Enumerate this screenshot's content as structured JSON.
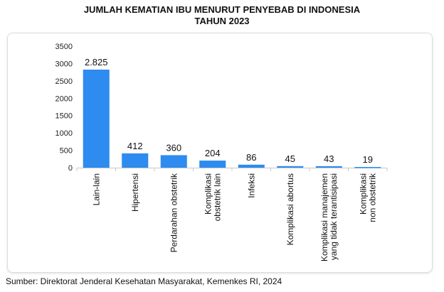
{
  "title_line1": "JUMLAH KEMATIAN IBU MENURUT PENYEBAB DI INDONESIA",
  "title_line2": "TAHUN 2023",
  "source": "Sumber: Direktorat Jenderal Kesehatan Masyarakat, Kemenkes RI, 2024",
  "chart_data": {
    "type": "bar",
    "title": "JUMLAH KEMATIAN IBU MENURUT PENYEBAB DI INDONESIA TAHUN 2023",
    "categories": [
      [
        "Lain-lain"
      ],
      [
        "Hipertensi"
      ],
      [
        "Perdarahan obstetrik"
      ],
      [
        "Komplikasi",
        "obstetrik lain"
      ],
      [
        "Infeksi"
      ],
      [
        "Komplikasi abortus"
      ],
      [
        "Komplikasi manajemen",
        "yang tidak terantisipasi"
      ],
      [
        "Komplikasi",
        "non obstetrik"
      ]
    ],
    "values": [
      2825,
      412,
      360,
      204,
      86,
      45,
      43,
      19
    ],
    "value_labels": [
      "2.825",
      "412",
      "360",
      "204",
      "86",
      "45",
      "43",
      "19"
    ],
    "yticks": [
      0,
      500,
      1000,
      1500,
      2000,
      2500,
      3000,
      3500
    ],
    "ylim": [
      0,
      3500
    ],
    "grid": false,
    "legend": "none",
    "colors": {
      "bar": "#2e8bef",
      "axis": "#c8c8c8"
    }
  }
}
